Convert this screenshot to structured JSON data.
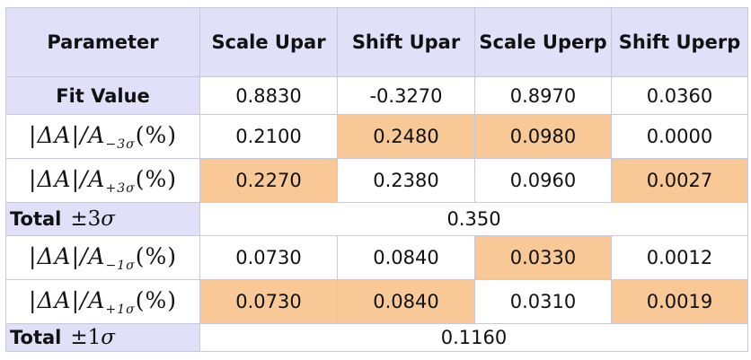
{
  "header": [
    "Parameter",
    "Scale Upar",
    "Shift Upar",
    "Scale Uperp",
    "Shift Uperp"
  ],
  "fit_row": {
    "label": "Fit Value",
    "values": [
      "0.8830",
      "-0.3270",
      "0.8970",
      "0.0360"
    ]
  },
  "rows": [
    {
      "label_main": "|ΔA|/A",
      "label_sub": "−3σ",
      "label_tail": "(%)",
      "values": [
        "0.2100",
        "0.2480",
        "0.0980",
        "0.0000"
      ]
    },
    {
      "label_main": "|ΔA|/A",
      "label_sub": "+3σ",
      "label_tail": "(%)",
      "values": [
        "0.2270",
        "0.2380",
        "0.0960",
        "0.0027"
      ]
    },
    {
      "label_main": "|ΔA|/A",
      "label_sub": "−1σ",
      "label_tail": "(%)",
      "values": [
        "0.0730",
        "0.0840",
        "0.0330",
        "0.0012"
      ]
    },
    {
      "label_main": "|ΔA|/A",
      "label_sub": "+1σ",
      "label_tail": "(%)",
      "values": [
        "0.0730",
        "0.0840",
        "0.0310",
        "0.0019"
      ]
    }
  ],
  "totals": [
    {
      "label": "Total",
      "pm": "±3",
      "sigma": "σ",
      "value": "0.350"
    },
    {
      "label": "Total",
      "pm": "±1",
      "sigma": "σ",
      "value": "0.1160"
    }
  ],
  "colors": {
    "header_bg": "#e0e0f8",
    "highlight": "#f8c896"
  }
}
